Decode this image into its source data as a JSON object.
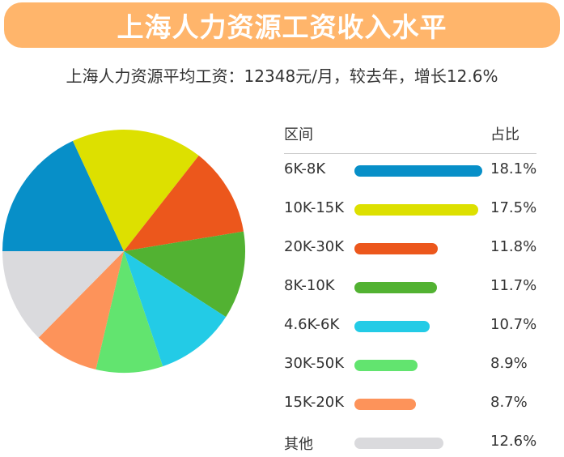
{
  "title": "上海人力资源工资收入水平",
  "subtitle": "上海人力资源平均工资：12348元/月，较去年，增长12.6%",
  "chart_data": {
    "type": "pie",
    "start": "9 o'clock, clockwise",
    "header": {
      "range": "区间",
      "share": "占比"
    },
    "categories": [
      "6K-8K",
      "10K-15K",
      "20K-30K",
      "8K-10K",
      "4.6K-6K",
      "30K-50K",
      "15K-20K",
      "其他"
    ],
    "values": [
      18.1,
      17.5,
      11.8,
      11.7,
      10.7,
      8.9,
      8.7,
      12.6
    ],
    "labels": [
      "18.1%",
      "17.5%",
      "11.8%",
      "11.7%",
      "10.7%",
      "8.9%",
      "8.7%",
      "12.6%"
    ],
    "colors": [
      "#078fc8",
      "#dde000",
      "#ec571c",
      "#52b232",
      "#23cbe6",
      "#62e46f",
      "#fd935a",
      "#dadadd"
    ]
  },
  "colors": {
    "banner": "#ffb56b"
  }
}
